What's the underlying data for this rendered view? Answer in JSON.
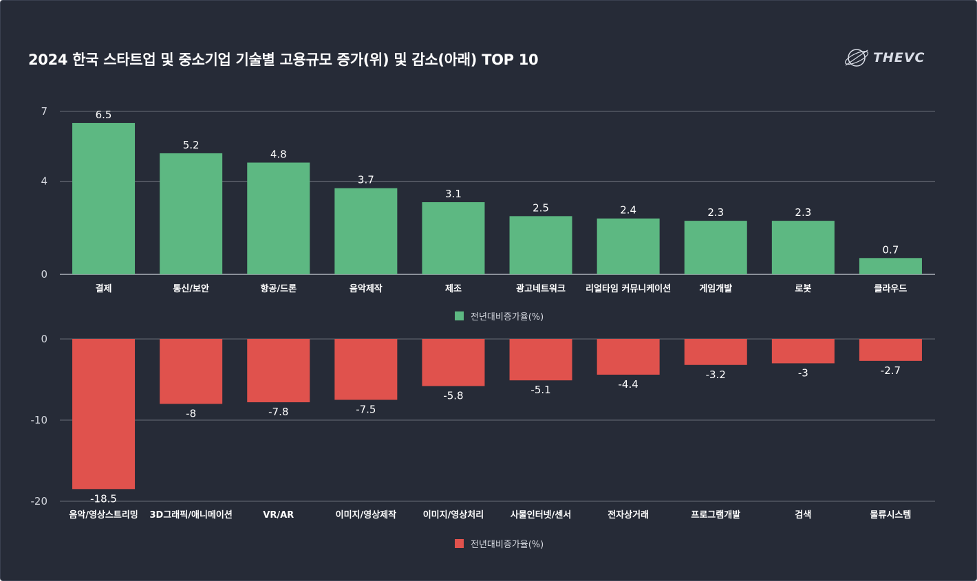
{
  "title": "2024 한국 스타트업 및 중소기업 기술별 고용규모 증가(위) 및 감소(아래) TOP 10",
  "logo_text": "THEVC",
  "colors": {
    "background": "#262b37",
    "increase": "#5db882",
    "decrease": "#e0524d",
    "grid": "#c8ccd4"
  },
  "chart_data": [
    {
      "type": "bar",
      "name": "increase",
      "categories": [
        "결제",
        "통신/보안",
        "항공/드론",
        "음악제작",
        "제조",
        "광고네트워크",
        "리얼타임 커뮤니케이션",
        "게임개발",
        "로봇",
        "클라우드"
      ],
      "values": [
        6.5,
        5.2,
        4.8,
        3.7,
        3.1,
        2.5,
        2.4,
        2.3,
        2.3,
        0.7
      ],
      "value_labels": [
        "6.5",
        "5.2",
        "4.8",
        "3.7",
        "3.1",
        "2.5",
        "2.4",
        "2.3",
        "2.3",
        "0.7"
      ],
      "y_ticks": [
        0,
        4,
        7
      ],
      "y_tick_labels": [
        "0",
        "4",
        "7"
      ],
      "ylim": [
        0,
        7
      ],
      "legend": "전년대비증가율(%)",
      "color": "#5db882"
    },
    {
      "type": "bar",
      "name": "decrease",
      "categories": [
        "음악/영상스트리밍",
        "3D그래픽/애니메이션",
        "VR/AR",
        "이미지/영상제작",
        "이미지/영상처리",
        "사물인터넷/센서",
        "전자상거래",
        "프로그램개발",
        "검색",
        "물류시스템"
      ],
      "values": [
        -18.5,
        -8,
        -7.8,
        -7.5,
        -5.8,
        -5.1,
        -4.4,
        -3.2,
        -3,
        -2.7
      ],
      "value_labels": [
        "-18.5",
        "-8",
        "-7.8",
        "-7.5",
        "-5.8",
        "-5.1",
        "-4.4",
        "-3.2",
        "-3",
        "-2.7"
      ],
      "y_ticks": [
        0,
        -10,
        -20
      ],
      "y_tick_labels": [
        "0",
        "-10",
        "-20"
      ],
      "ylim": [
        -20,
        0
      ],
      "legend": "전년대비증가율(%)",
      "color": "#e0524d"
    }
  ]
}
